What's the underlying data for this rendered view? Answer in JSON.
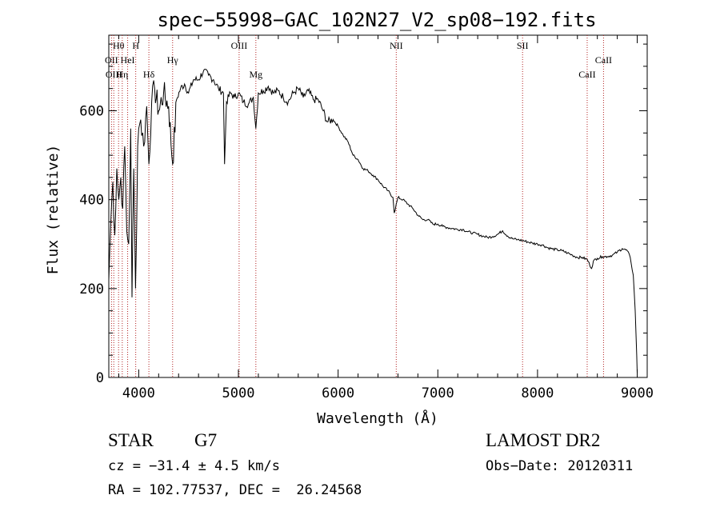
{
  "chart_data": {
    "type": "line",
    "title": "spec−55998−GAC_102N27_V2_sp08−192.fits",
    "xlabel": "Wavelength (Å)",
    "ylabel": "Flux (relative)",
    "xlim": [
      3700,
      9100
    ],
    "ylim": [
      0,
      770
    ],
    "xticks": [
      4000,
      5000,
      6000,
      7000,
      8000,
      9000
    ],
    "yticks": [
      0,
      200,
      400,
      600
    ],
    "grid": false,
    "series": [
      {
        "x": [
          3700,
          3720,
          3740,
          3760,
          3780,
          3800,
          3820,
          3840,
          3860,
          3880,
          3900,
          3920,
          3933,
          3950,
          3968,
          3990,
          4000,
          4020,
          4050,
          4080,
          4102,
          4130,
          4160,
          4200,
          4250,
          4300,
          4340,
          4380,
          4420,
          4460,
          4500,
          4550,
          4600,
          4650,
          4700,
          4750,
          4800,
          4850,
          4861,
          4880,
          4920,
          4960,
          5000,
          5050,
          5100,
          5150,
          5175,
          5200,
          5250,
          5300,
          5350,
          5400,
          5450,
          5500,
          5550,
          5600,
          5650,
          5700,
          5750,
          5800,
          5850,
          5890,
          5950,
          6000,
          6050,
          6100,
          6150,
          6200,
          6250,
          6300,
          6350,
          6400,
          6450,
          6500,
          6550,
          6563,
          6600,
          6650,
          6700,
          6750,
          6800,
          6850,
          6900,
          6950,
          7000,
          7050,
          7100,
          7150,
          7200,
          7250,
          7300,
          7350,
          7400,
          7450,
          7500,
          7550,
          7600,
          7650,
          7700,
          7750,
          7800,
          7850,
          7900,
          7950,
          8000,
          8050,
          8100,
          8150,
          8200,
          8250,
          8300,
          8350,
          8400,
          8450,
          8500,
          8542,
          8560,
          8600,
          8650,
          8700,
          8750,
          8800,
          8850,
          8900,
          8930,
          8960,
          8980,
          8995,
          9000
        ],
        "y": [
          220,
          350,
          440,
          320,
          470,
          400,
          450,
          380,
          520,
          330,
          300,
          560,
          180,
          470,
          200,
          520,
          560,
          580,
          520,
          610,
          480,
          620,
          650,
          600,
          640,
          610,
          480,
          625,
          650,
          660,
          640,
          670,
          670,
          690,
          680,
          670,
          650,
          640,
          480,
          620,
          640,
          630,
          640,
          620,
          615,
          630,
          560,
          640,
          645,
          655,
          640,
          645,
          630,
          620,
          640,
          650,
          630,
          645,
          625,
          625,
          600,
          575,
          580,
          565,
          545,
          530,
          500,
          490,
          470,
          465,
          455,
          445,
          430,
          420,
          405,
          370,
          405,
          400,
          390,
          380,
          365,
          355,
          355,
          345,
          345,
          340,
          337,
          335,
          333,
          333,
          328,
          325,
          322,
          318,
          315,
          317,
          322,
          330,
          318,
          312,
          310,
          308,
          305,
          302,
          300,
          298,
          292,
          289,
          287,
          285,
          280,
          275,
          270,
          270,
          265,
          245,
          262,
          268,
          272,
          272,
          275,
          282,
          290,
          285,
          270,
          230,
          150,
          50,
          10
        ]
      }
    ],
    "line_markers": [
      {
        "label": "Hθ",
        "x": 3798,
        "row": 0
      },
      {
        "label": "H",
        "x": 3970,
        "row": 0
      },
      {
        "label": "OIII",
        "x": 5007,
        "row": 0
      },
      {
        "label": "NII",
        "x": 6583,
        "row": 0
      },
      {
        "label": "SII",
        "x": 7850,
        "row": 0
      },
      {
        "label": "OII",
        "x": 3727,
        "row": 1
      },
      {
        "label": "HeI",
        "x": 3889,
        "row": 1
      },
      {
        "label": "Hγ",
        "x": 4340,
        "row": 1
      },
      {
        "label": "CaII",
        "x": 8662,
        "row": 1
      },
      {
        "label": "OIII",
        "x": 3750,
        "row": 2
      },
      {
        "label": "Hη",
        "x": 3835,
        "row": 2
      },
      {
        "label": "Hδ",
        "x": 4102,
        "row": 2
      },
      {
        "label": "Mg",
        "x": 5175,
        "row": 2
      },
      {
        "label": "CaII",
        "x": 8498,
        "row": 2
      }
    ]
  },
  "info": {
    "obj_class": "STAR",
    "subclass": "G7",
    "survey": "LAMOST DR2",
    "cz": "cz = −31.4 ± 4.5 km/s",
    "obs_date": "Obs−Date: 20120311",
    "coords": "RA = 102.77537, DEC =  26.24568"
  }
}
